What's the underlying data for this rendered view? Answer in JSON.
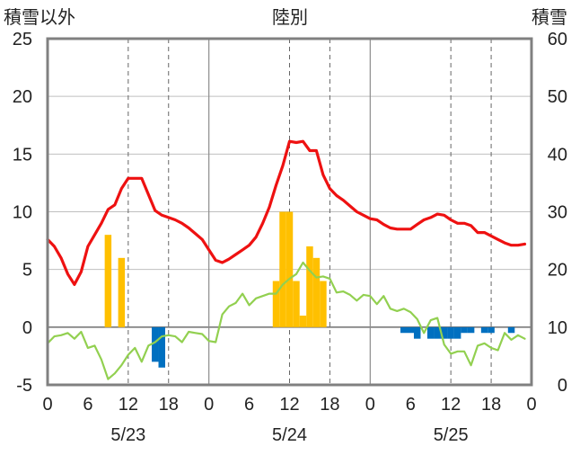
{
  "chart_data": {
    "type": "line",
    "title": "陸別",
    "left_axis_label": "積雪以外",
    "right_axis_label": "積雪",
    "y_left": {
      "min": -5,
      "max": 25,
      "ticks": [
        -5,
        0,
        5,
        10,
        15,
        20,
        25
      ]
    },
    "y_right": {
      "min": 0,
      "max": 60,
      "ticks": [
        0,
        10,
        20,
        30,
        40,
        50,
        60
      ]
    },
    "x": {
      "min": 0,
      "max": 72,
      "unit": "hour",
      "tick_positions": [
        0,
        6,
        12,
        18,
        24,
        30,
        36,
        42,
        48,
        54,
        60,
        66,
        72
      ],
      "tick_labels": [
        "0",
        "6",
        "12",
        "18",
        "0",
        "6",
        "12",
        "18",
        "0",
        "6",
        "12",
        "18",
        "0"
      ],
      "date_labels": [
        {
          "at": 12,
          "label": "5/23"
        },
        {
          "at": 36,
          "label": "5/24"
        },
        {
          "at": 60,
          "label": "5/25"
        }
      ],
      "day_boundaries": [
        24,
        48
      ],
      "noon_lines": [
        12,
        36,
        60
      ]
    },
    "colors": {
      "red_line": "#ee1111",
      "green_line": "#92d050",
      "positive_bar": "#ffc000",
      "negative_bar": "#0070c0"
    },
    "series": [
      {
        "color_key": "red_line",
        "axis": "left",
        "points": [
          [
            0,
            7.6
          ],
          [
            1,
            7
          ],
          [
            2,
            6
          ],
          [
            3,
            4.6
          ],
          [
            4,
            3.7
          ],
          [
            5,
            4.8
          ],
          [
            6,
            7
          ],
          [
            7,
            8
          ],
          [
            8,
            9
          ],
          [
            9,
            10.2
          ],
          [
            10,
            10.6
          ],
          [
            11,
            12
          ],
          [
            12,
            12.9
          ],
          [
            13,
            12.9
          ],
          [
            14,
            12.9
          ],
          [
            15,
            11.5
          ],
          [
            16,
            10.1
          ],
          [
            17,
            9.7
          ],
          [
            18,
            9.5
          ],
          [
            19,
            9.3
          ],
          [
            20,
            9
          ],
          [
            21,
            8.6
          ],
          [
            22,
            8.1
          ],
          [
            23,
            7.6
          ],
          [
            24,
            6.7
          ],
          [
            25,
            5.8
          ],
          [
            26,
            5.6
          ],
          [
            27,
            5.9
          ],
          [
            28,
            6.3
          ],
          [
            29,
            6.7
          ],
          [
            30,
            7.1
          ],
          [
            31,
            7.8
          ],
          [
            32,
            9
          ],
          [
            33,
            10.4
          ],
          [
            34,
            12.3
          ],
          [
            35,
            14
          ],
          [
            36,
            16.1
          ],
          [
            37,
            16
          ],
          [
            38,
            16.1
          ],
          [
            39,
            15.3
          ],
          [
            40,
            15.3
          ],
          [
            41,
            13.2
          ],
          [
            42,
            12
          ],
          [
            43,
            11.4
          ],
          [
            44,
            11
          ],
          [
            45,
            10.5
          ],
          [
            46,
            10
          ],
          [
            47,
            9.7
          ],
          [
            48,
            9.4
          ],
          [
            49,
            9.3
          ],
          [
            50,
            8.9
          ],
          [
            51,
            8.6
          ],
          [
            52,
            8.5
          ],
          [
            53,
            8.5
          ],
          [
            54,
            8.5
          ],
          [
            55,
            8.9
          ],
          [
            56,
            9.3
          ],
          [
            57,
            9.5
          ],
          [
            58,
            9.8
          ],
          [
            59,
            9.7
          ],
          [
            60,
            9.3
          ],
          [
            61,
            9
          ],
          [
            62,
            9
          ],
          [
            63,
            8.8
          ],
          [
            64,
            8.2
          ],
          [
            65,
            8.2
          ],
          [
            66,
            7.9
          ],
          [
            67,
            7.6
          ],
          [
            68,
            7.3
          ],
          [
            69,
            7.1
          ],
          [
            70,
            7.1
          ],
          [
            71,
            7.2
          ]
        ]
      },
      {
        "color_key": "green_line",
        "axis": "left",
        "points": [
          [
            0,
            -1.4
          ],
          [
            1,
            -0.8
          ],
          [
            2,
            -0.7
          ],
          [
            3,
            -0.5
          ],
          [
            4,
            -1
          ],
          [
            5,
            -0.4
          ],
          [
            6,
            -1.8
          ],
          [
            7,
            -1.6
          ],
          [
            8,
            -2.8
          ],
          [
            9,
            -4.5
          ],
          [
            10,
            -4
          ],
          [
            11,
            -3.3
          ],
          [
            12,
            -2.4
          ],
          [
            13,
            -1.8
          ],
          [
            14,
            -3
          ],
          [
            15,
            -1.6
          ],
          [
            16,
            -1.3
          ],
          [
            17,
            -0.8
          ],
          [
            18,
            -0.7
          ],
          [
            19,
            -0.8
          ],
          [
            20,
            -1.3
          ],
          [
            21,
            -0.4
          ],
          [
            22,
            -0.5
          ],
          [
            23,
            -0.6
          ],
          [
            24,
            -1.2
          ],
          [
            25,
            -1.3
          ],
          [
            26,
            1.1
          ],
          [
            27,
            1.8
          ],
          [
            28,
            2.1
          ],
          [
            29,
            2.9
          ],
          [
            30,
            1.9
          ],
          [
            31,
            2.5
          ],
          [
            32,
            2.7
          ],
          [
            33,
            2.9
          ],
          [
            34,
            2.9
          ],
          [
            35,
            3.7
          ],
          [
            36,
            4.2
          ],
          [
            37,
            4.6
          ],
          [
            38,
            5.6
          ],
          [
            39,
            4.9
          ],
          [
            40,
            4.3
          ],
          [
            41,
            4.4
          ],
          [
            42,
            4.2
          ],
          [
            43,
            3
          ],
          [
            44,
            3.1
          ],
          [
            45,
            2.8
          ],
          [
            46,
            2.3
          ],
          [
            47,
            2.8
          ],
          [
            48,
            2.7
          ],
          [
            49,
            2
          ],
          [
            50,
            2.7
          ],
          [
            51,
            1.6
          ],
          [
            52,
            1.4
          ],
          [
            53,
            1.6
          ],
          [
            54,
            1.3
          ],
          [
            55,
            0.7
          ],
          [
            56,
            -0.5
          ],
          [
            57,
            0.6
          ],
          [
            58,
            0.8
          ],
          [
            59,
            -1.5
          ],
          [
            60,
            -2.3
          ],
          [
            61,
            -2.1
          ],
          [
            62,
            -2.1
          ],
          [
            63,
            -3.3
          ],
          [
            64,
            -1.6
          ],
          [
            65,
            -1.4
          ],
          [
            66,
            -1.8
          ],
          [
            67,
            -2
          ],
          [
            68,
            -0.5
          ],
          [
            69,
            -1.1
          ],
          [
            70,
            -0.7
          ],
          [
            71,
            -1
          ]
        ]
      }
    ],
    "bars": {
      "axis": "left",
      "values": [
        {
          "x": 9,
          "value": 8
        },
        {
          "x": 11,
          "value": 6
        },
        {
          "x": 16,
          "value": -3
        },
        {
          "x": 17,
          "value": -3.5
        },
        {
          "x": 34,
          "value": 4
        },
        {
          "x": 35,
          "value": 10
        },
        {
          "x": 36,
          "value": 10
        },
        {
          "x": 37,
          "value": 4
        },
        {
          "x": 38,
          "value": 1
        },
        {
          "x": 39,
          "value": 7
        },
        {
          "x": 40,
          "value": 6
        },
        {
          "x": 41,
          "value": 4
        },
        {
          "x": 53,
          "value": -0.5
        },
        {
          "x": 54,
          "value": -0.5
        },
        {
          "x": 55,
          "value": -1
        },
        {
          "x": 57,
          "value": -1
        },
        {
          "x": 58,
          "value": -1
        },
        {
          "x": 59,
          "value": -1
        },
        {
          "x": 60,
          "value": -1
        },
        {
          "x": 61,
          "value": -1
        },
        {
          "x": 62,
          "value": -0.5
        },
        {
          "x": 63,
          "value": -0.5
        },
        {
          "x": 65,
          "value": -0.5
        },
        {
          "x": 66,
          "value": -0.5
        },
        {
          "x": 69,
          "value": -0.5
        }
      ]
    },
    "grid": true
  }
}
